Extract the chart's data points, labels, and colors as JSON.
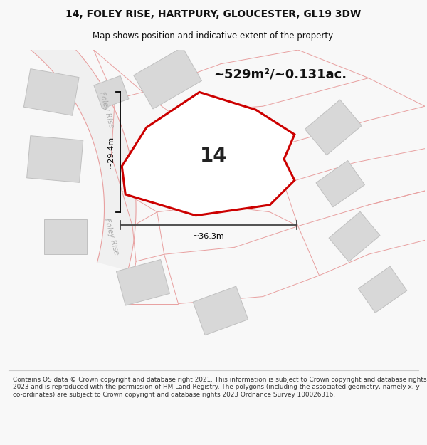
{
  "title_line1": "14, FOLEY RISE, HARTPURY, GLOUCESTER, GL19 3DW",
  "title_line2": "Map shows position and indicative extent of the property.",
  "area_label": "~529m²/~0.131ac.",
  "plot_number": "14",
  "road_label_upper": "Foley Rise",
  "road_label_lower": "Foley Rise",
  "dim_vertical": "~29.4m",
  "dim_horizontal": "~36.3m",
  "footer_text": "Contains OS data © Crown copyright and database right 2021. This information is subject to Crown copyright and database rights 2023 and is reproduced with the permission of HM Land Registry. The polygons (including the associated geometry, namely x, y co-ordinates) are subject to Crown copyright and database rights 2023 Ordnance Survey 100026316.",
  "bg_color": "#f8f8f8",
  "map_bg": "#ffffff",
  "road_fill": "#f0f0f0",
  "building_color": "#d8d8d8",
  "building_stroke": "#c0c0c0",
  "plot_fill": "#f5f5f5",
  "plot_stroke": "#cc0000",
  "road_line_color": "#e8a0a0",
  "dim_color": "#222222",
  "title_color": "#111111",
  "footer_color": "#333333",
  "road_label_color": "#aaaaaa"
}
